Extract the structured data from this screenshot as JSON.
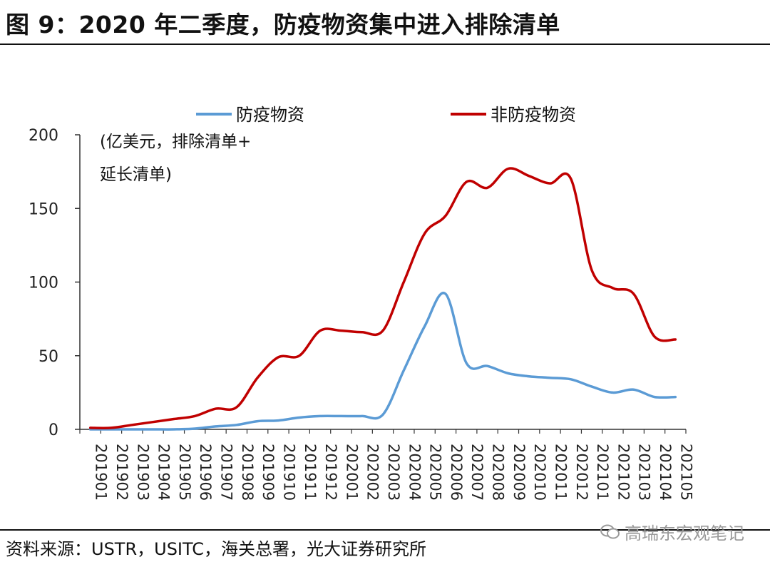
{
  "header": {
    "title": "图 9：2020 年二季度，防疫物资集中进入排除清单"
  },
  "footer": {
    "source": "资料来源：USTR，USITC，海关总署，光大证券研究所",
    "watermark": "高瑞东宏观笔记"
  },
  "chart_data": {
    "type": "line",
    "unit_label": [
      "(亿美元，排除清单+",
      "延长清单)"
    ],
    "xlabel": "",
    "ylabel": "",
    "ylim": [
      0,
      200
    ],
    "yticks": [
      0,
      50,
      100,
      150,
      200
    ],
    "grid": false,
    "legend_position": "top",
    "categories": [
      "201901",
      "201902",
      "201903",
      "201904",
      "201905",
      "201906",
      "201907",
      "201908",
      "201909",
      "201910",
      "201911",
      "201912",
      "202001",
      "202002",
      "202003",
      "202004",
      "202005",
      "202006",
      "202007",
      "202008",
      "202009",
      "202010",
      "202011",
      "202012",
      "202101",
      "202102",
      "202103",
      "202104",
      "202105"
    ],
    "series": [
      {
        "name": "防疫物资",
        "color": "#5B9BD5",
        "values": [
          0,
          0,
          0,
          0,
          0,
          0.5,
          2,
          3,
          5.5,
          6,
          8,
          9,
          9,
          9,
          10,
          40,
          70,
          92,
          45,
          43,
          38,
          36,
          35,
          34,
          29,
          25,
          27,
          22,
          22
        ]
      },
      {
        "name": "非防疫物资",
        "color": "#C00000",
        "values": [
          1,
          1,
          3,
          5,
          7,
          9,
          14,
          15,
          35,
          49,
          50,
          67,
          67,
          66,
          67,
          100,
          133,
          145,
          168,
          164,
          177,
          172,
          167,
          170,
          108,
          96,
          92,
          63,
          61
        ]
      }
    ]
  }
}
